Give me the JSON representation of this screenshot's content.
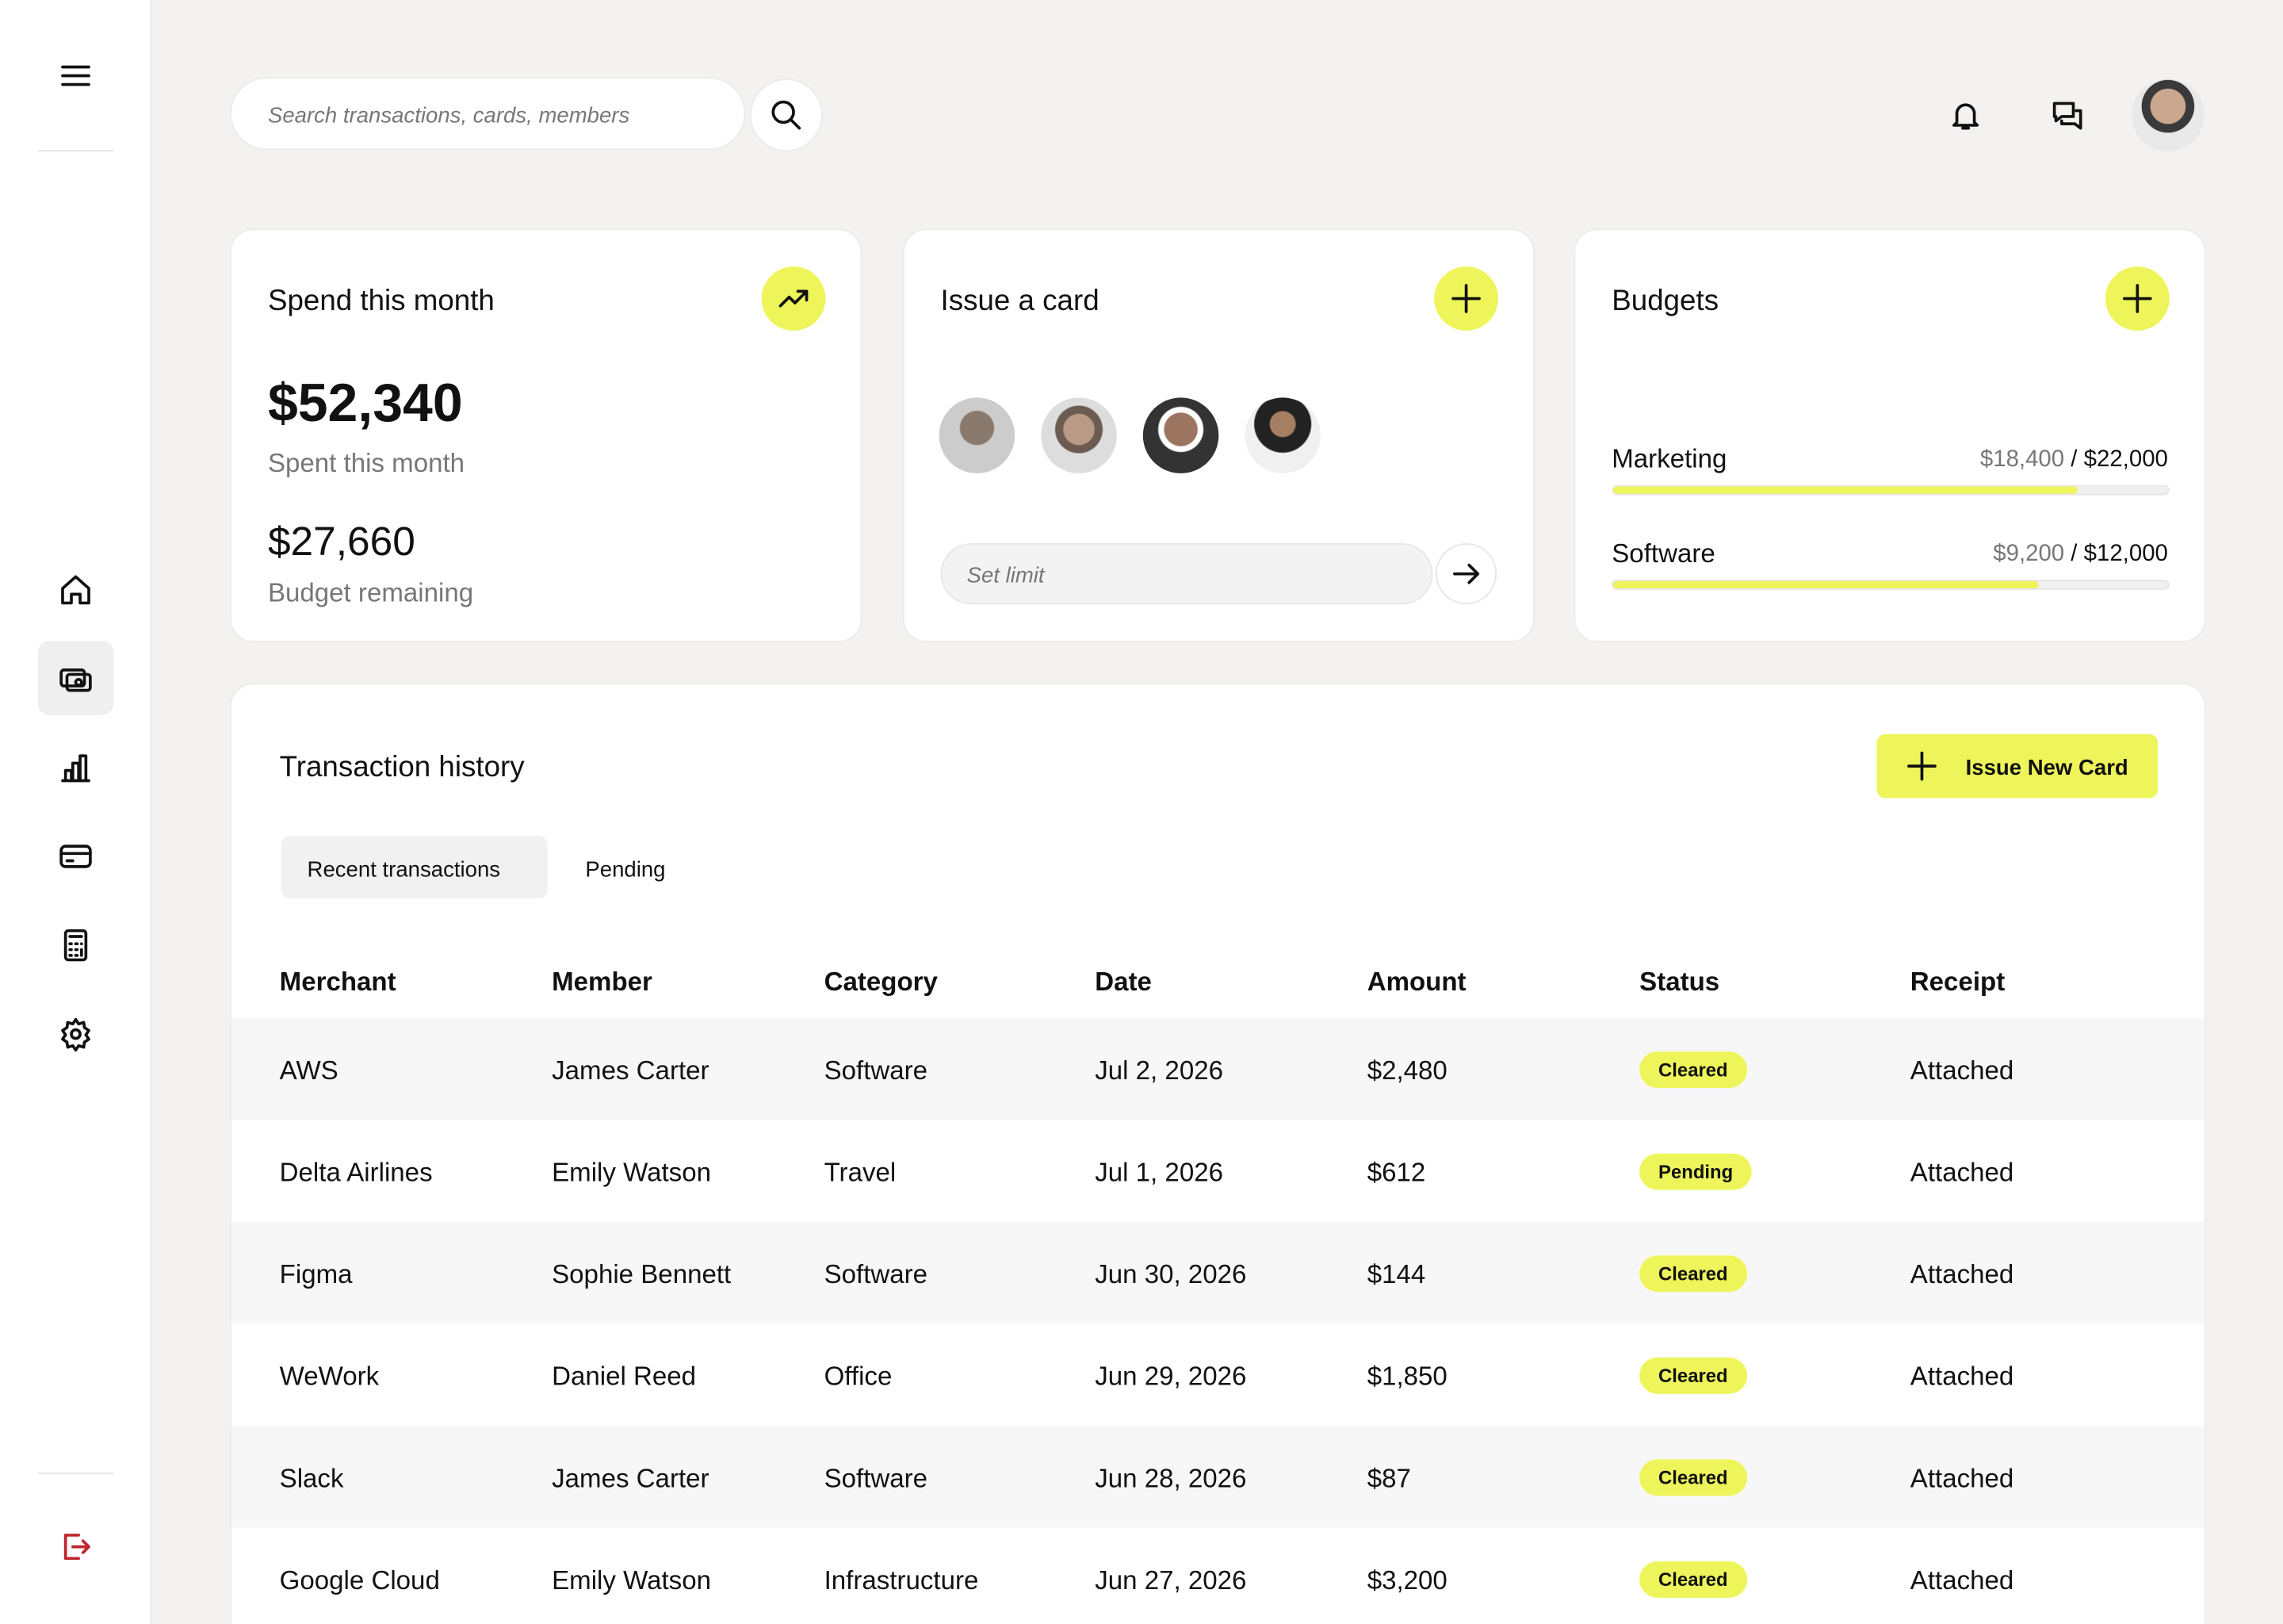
{
  "search": {
    "placeholder": "Search transactions, cards, members"
  },
  "spend_card": {
    "title": "Spend this month",
    "amount": "$52,340",
    "amount_caption": "Spent this month",
    "remaining": "$27,660",
    "remaining_caption": "Budget remaining"
  },
  "issue_card": {
    "title": "Issue a card",
    "limit_placeholder": "Set limit"
  },
  "budgets": {
    "title": "Budgets",
    "items": [
      {
        "name": "Marketing",
        "spent": 18400,
        "limit": 22000,
        "spent_label": "$18,400",
        "limit_label": "$22,000"
      },
      {
        "name": "Software",
        "spent": 9200,
        "limit": 12000,
        "spent_label": "$9,200",
        "limit_label": "$12,000"
      }
    ]
  },
  "transactions": {
    "title": "Transaction history",
    "button": "Issue New Card",
    "tabs": [
      "Recent transactions",
      "Pending"
    ],
    "columns": [
      "Merchant",
      "Member",
      "Category",
      "Date",
      "Amount",
      "Status",
      "Receipt"
    ],
    "rows": [
      [
        "AWS",
        "James Carter",
        "Software",
        "Jul 2, 2026",
        "$2,480",
        "Cleared",
        "Attached"
      ],
      [
        "Delta Airlines",
        "Emily Watson",
        "Travel",
        "Jul 1, 2026",
        "$612",
        "Pending",
        "Attached"
      ],
      [
        "Figma",
        "Sophie Bennett",
        "Software",
        "Jun 30, 2026",
        "$144",
        "Cleared",
        "Attached"
      ],
      [
        "WeWork",
        "Daniel Reed",
        "Office",
        "Jun 29, 2026",
        "$1,850",
        "Cleared",
        "Attached"
      ],
      [
        "Slack",
        "James Carter",
        "Software",
        "Jun 28, 2026",
        "$87",
        "Cleared",
        "Attached"
      ],
      [
        "Google Cloud",
        "Emily Watson",
        "Infrastructure",
        "Jun 27, 2026",
        "$3,200",
        "Cleared",
        "Attached"
      ]
    ]
  }
}
